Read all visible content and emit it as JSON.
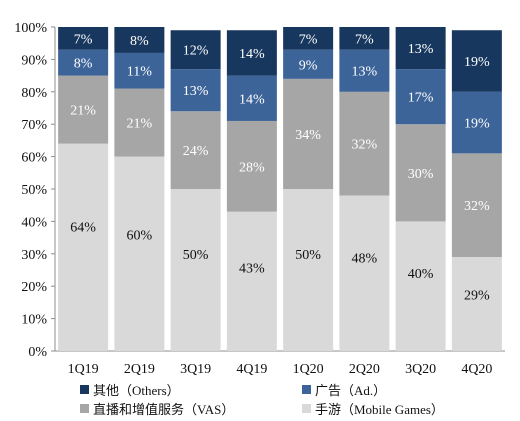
{
  "chart_data": {
    "type": "bar",
    "stacked": true,
    "title": "",
    "xlabel": "",
    "ylabel": "",
    "ylim": [
      0,
      100
    ],
    "yticks": [
      "0%",
      "10%",
      "20%",
      "30%",
      "40%",
      "50%",
      "60%",
      "70%",
      "80%",
      "90%",
      "100%"
    ],
    "categories": [
      "1Q19",
      "2Q19",
      "3Q19",
      "4Q19",
      "1Q20",
      "2Q20",
      "3Q20",
      "4Q20"
    ],
    "series": [
      {
        "name": "手游（Mobile Games）",
        "color": "#d9d9d9",
        "label_color": "#111111",
        "values": [
          64,
          60,
          50,
          43,
          50,
          48,
          40,
          29
        ],
        "labels": [
          "64%",
          "60%",
          "50%",
          "43%",
          "50%",
          "48%",
          "40%",
          "29%"
        ]
      },
      {
        "name": "直播和增值服务（VAS）",
        "color": "#a6a6a6",
        "label_color": "#ffffff",
        "values": [
          21,
          21,
          24,
          28,
          34,
          32,
          30,
          32
        ],
        "labels": [
          "21%",
          "21%",
          "24%",
          "28%",
          "34%",
          "32%",
          "30%",
          "32%"
        ]
      },
      {
        "name": "广告（Ad.）",
        "color": "#3d6499",
        "label_color": "#ffffff",
        "values": [
          8,
          11,
          13,
          14,
          9,
          13,
          17,
          19
        ],
        "labels": [
          "8%",
          "11%",
          "13%",
          "14%",
          "9%",
          "13%",
          "17%",
          "19%"
        ]
      },
      {
        "name": "其他（Others）",
        "color": "#17375e",
        "label_color": "#ffffff",
        "values": [
          7,
          8,
          12,
          14,
          7,
          7,
          13,
          19
        ],
        "labels": [
          "7%",
          "8%",
          "12%",
          "14%",
          "7%",
          "7%",
          "13%",
          "19%"
        ]
      }
    ],
    "grid": false,
    "legend_position": "bottom"
  },
  "legend": {
    "others": "其他（Others）",
    "ad": "广告（Ad.）",
    "vas": "直播和增值服务（VAS）",
    "mobile_games": "手游（Mobile Games）"
  }
}
